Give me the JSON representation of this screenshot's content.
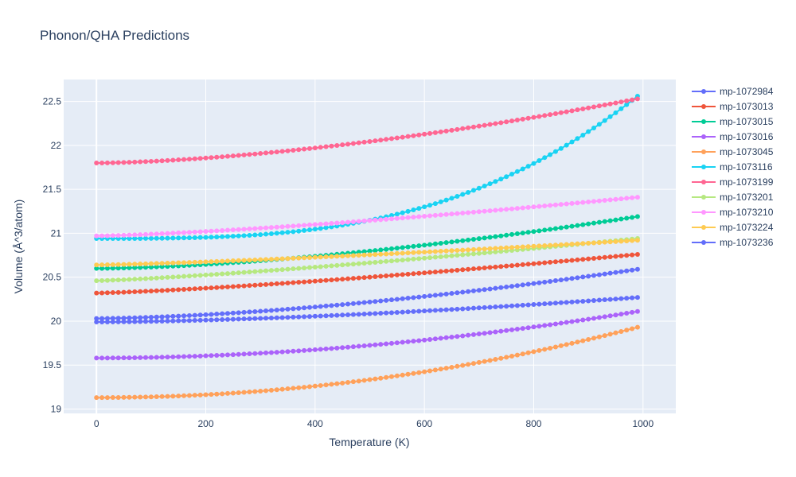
{
  "chart_data": {
    "type": "line",
    "title": "Phonon/QHA Predictions",
    "xlabel": "Temperature (K)",
    "ylabel": "Volume (Å^3/atom)",
    "xlim": [
      -60,
      1060
    ],
    "ylim": [
      18.95,
      22.75
    ],
    "xticks": [
      0,
      200,
      400,
      600,
      800,
      1000
    ],
    "xtick_labels": [
      "0",
      "200",
      "400",
      "600",
      "800",
      "1000"
    ],
    "yticks": [
      19,
      19.5,
      20,
      20.5,
      21,
      21.5,
      22,
      22.5
    ],
    "ytick_labels": [
      "19",
      "19.5",
      "20",
      "20.5",
      "21",
      "21.5",
      "22",
      "22.5"
    ],
    "grid": true,
    "legend": "right",
    "x_start": 0,
    "x_step": 10,
    "x_end": 990,
    "series": [
      {
        "name": "mp-1072984",
        "color": "#636efa",
        "v0": 19.99,
        "v1": 20.27,
        "p": 1.6
      },
      {
        "name": "mp-1073013",
        "color": "#ef553b",
        "v0": 20.32,
        "v1": 20.76,
        "p": 1.3
      },
      {
        "name": "mp-1073015",
        "color": "#00cc96",
        "v0": 20.6,
        "v1": 21.19,
        "p": 1.6
      },
      {
        "name": "mp-1073016",
        "color": "#ab63fa",
        "v0": 19.58,
        "v1": 20.11,
        "p": 1.9
      },
      {
        "name": "mp-1073045",
        "color": "#ffa15a",
        "v0": 19.13,
        "v1": 19.93,
        "p": 2.0
      },
      {
        "name": "mp-1073116",
        "color": "#19d3f3",
        "v0": 20.94,
        "v1": 22.56,
        "p": 3.0
      },
      {
        "name": "mp-1073199",
        "color": "#ff6692",
        "v0": 21.8,
        "v1": 22.53,
        "p": 1.6
      },
      {
        "name": "mp-1073201",
        "color": "#b6e880",
        "v0": 20.46,
        "v1": 20.94,
        "p": 1.25
      },
      {
        "name": "mp-1073210",
        "color": "#ff97ff",
        "v0": 20.97,
        "v1": 21.41,
        "p": 1.35
      },
      {
        "name": "mp-1073224",
        "color": "#fecb52",
        "v0": 20.64,
        "v1": 20.92,
        "p": 1.3
      },
      {
        "name": "mp-1073236",
        "color": "#636efa",
        "v0": 20.03,
        "v1": 20.59,
        "p": 1.6
      }
    ]
  }
}
